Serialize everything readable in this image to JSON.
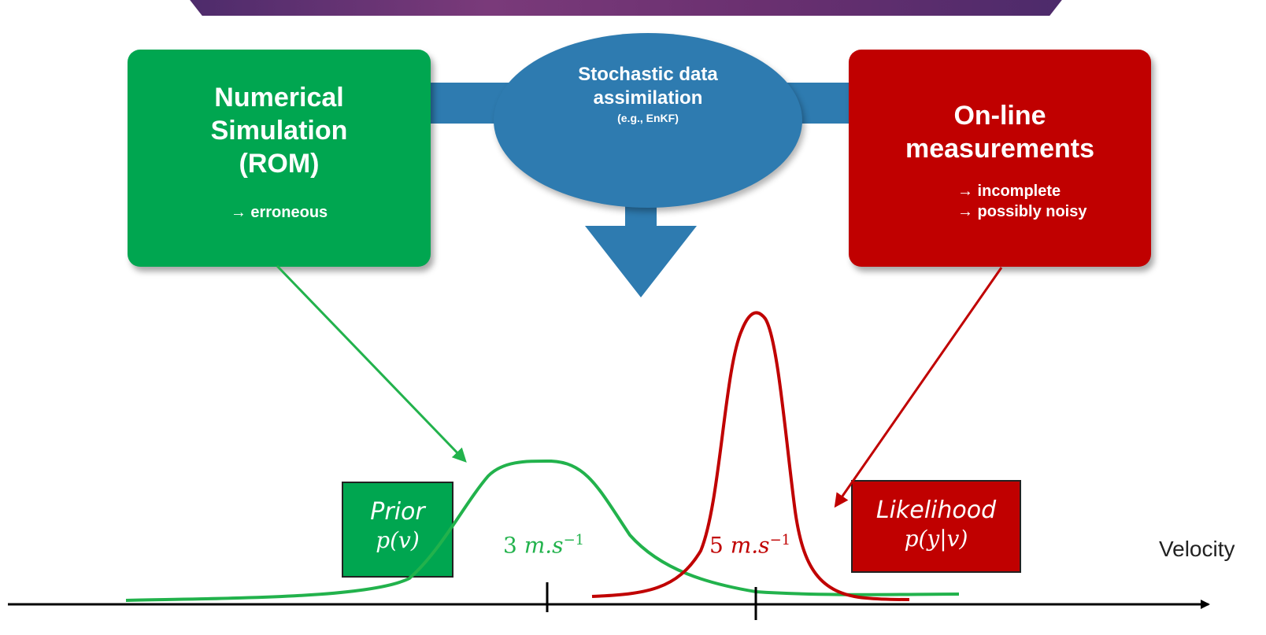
{
  "simulation": {
    "title_line1": "Numerical",
    "title_line2": "Simulation",
    "title_line3": "(ROM)",
    "note": "→ erroneous",
    "color": "#00a650"
  },
  "assimilation": {
    "title_line1": "Stochastic data",
    "title_line2": "assimilation",
    "subtitle": "(e.g., EnKF)",
    "color": "#2e7bb0"
  },
  "measurements": {
    "title_line1": "On-line",
    "title_line2": "measurements",
    "note_line1": "→ incomplete",
    "note_line2": "→ possibly noisy",
    "color": "#c00000"
  },
  "prior": {
    "label": "Prior",
    "formula": "p(v)"
  },
  "likelihood": {
    "label": "Likelihood",
    "formula": "p(y|v)"
  },
  "ticks": {
    "prior_value": "3",
    "likelihood_value": "5",
    "unit": "m.s",
    "exponent": "−1"
  },
  "axis": {
    "label": "Velocity"
  }
}
